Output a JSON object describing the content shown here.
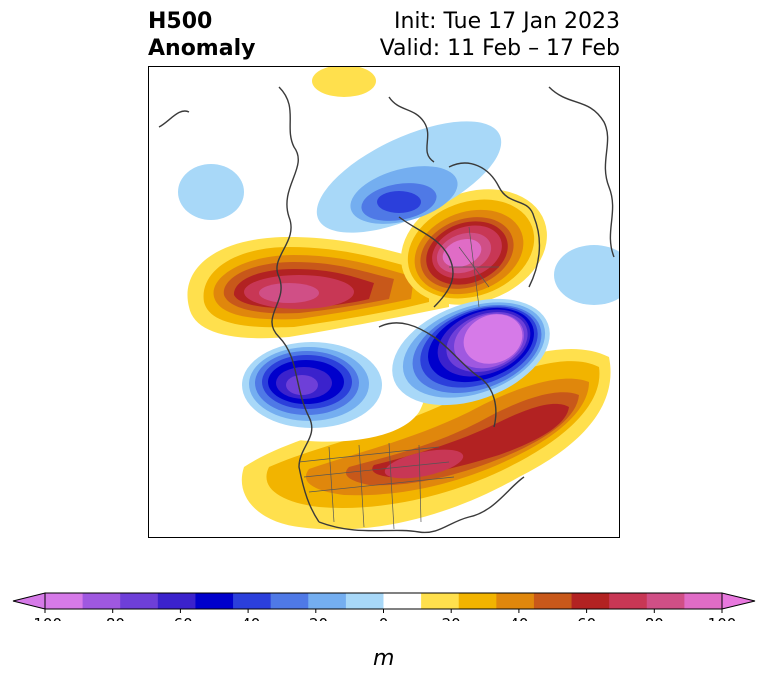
{
  "title": {
    "line1": "H500",
    "line2": "Anomaly",
    "init": "Init: Tue 17 Jan 2023",
    "valid": "Valid: 11 Feb – 17 Feb"
  },
  "colorbar": {
    "unit": "m",
    "ticks": [
      "-100",
      "-80",
      "-60",
      "-40",
      "-20",
      "0",
      "20",
      "40",
      "60",
      "80",
      "100"
    ],
    "colors": [
      "#d67ae8",
      "#9f58e0",
      "#6e3fd8",
      "#3b22cc",
      "#0000cc",
      "#2b3fdb",
      "#4f79e6",
      "#74aef0",
      "#a8d8f8",
      "#ffffff",
      "#ffe04d",
      "#f2b400",
      "#e0870c",
      "#c8581a",
      "#b22222",
      "#c83755",
      "#d04f86",
      "#e06cc6"
    ],
    "extend_low_color": "#d67ae8",
    "extend_high_color": "#e878de"
  }
}
